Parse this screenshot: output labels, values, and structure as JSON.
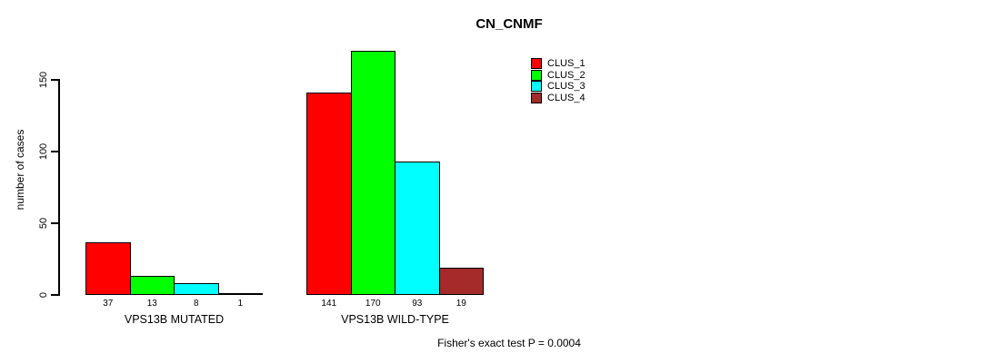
{
  "chart_data": {
    "type": "bar",
    "title": "CN_CNMF",
    "xlabel": "",
    "ylabel": "number of cases",
    "ylim": [
      0,
      175
    ],
    "yticks": [
      0,
      50,
      100,
      150
    ],
    "categories": [
      "VPS13B MUTATED",
      "VPS13B WILD-TYPE"
    ],
    "series": [
      {
        "name": "CLUS_1",
        "color": "#ff0000",
        "values": [
          37,
          141
        ]
      },
      {
        "name": "CLUS_2",
        "color": "#00ff00",
        "values": [
          13,
          170
        ]
      },
      {
        "name": "CLUS_3",
        "color": "#00ffff",
        "values": [
          8,
          93
        ]
      },
      {
        "name": "CLUS_4",
        "color": "#a52a2a",
        "values": [
          1,
          19
        ]
      }
    ],
    "bar_value_labels": true,
    "legend_position": "top-right",
    "grid": false,
    "annotation": "Fisher's exact test P = 0.0004"
  }
}
